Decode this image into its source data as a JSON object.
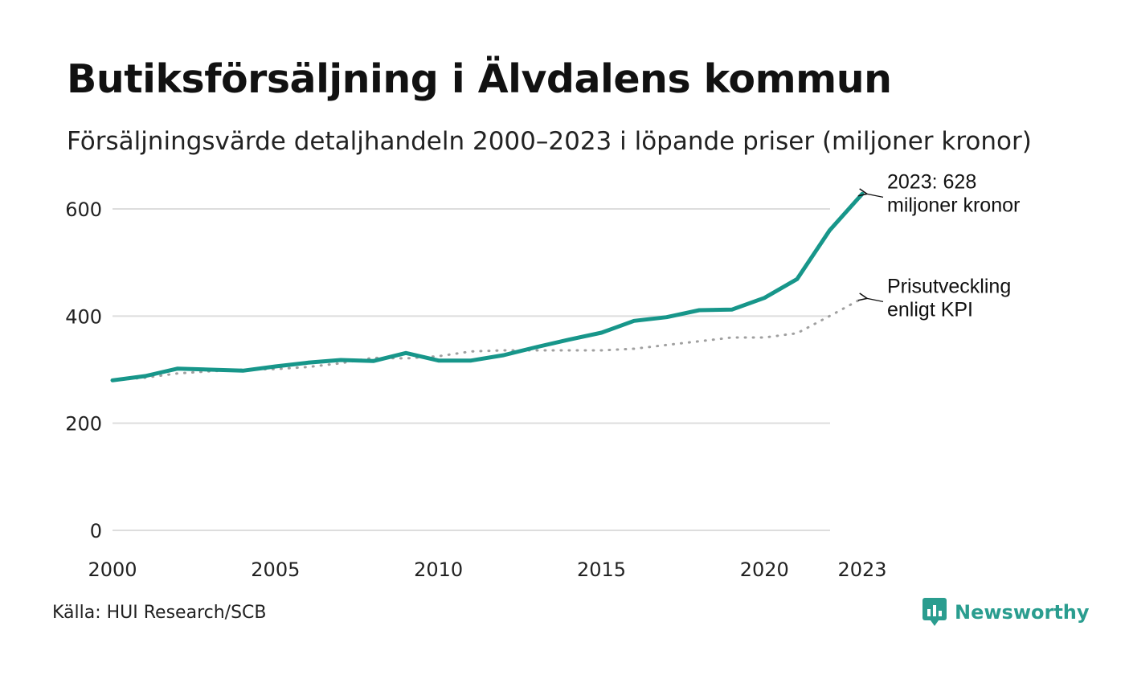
{
  "title": "Butiksförsäljning i Älvdalens kommun",
  "subtitle": "Försäljningsvärde detaljhandeln 2000–2023 i löpande priser (miljoner kronor)",
  "source": "Källa: HUI Research/SCB",
  "brand": "Newsworthy",
  "colors": {
    "sales": "#17968a",
    "kpi": "#a0a0a0",
    "grid": "#dddddd",
    "brand": "#2a9d8f"
  },
  "chart_data": {
    "type": "line",
    "x": [
      2000,
      2001,
      2002,
      2003,
      2004,
      2005,
      2006,
      2007,
      2008,
      2009,
      2010,
      2011,
      2012,
      2013,
      2014,
      2015,
      2016,
      2017,
      2018,
      2019,
      2020,
      2021,
      2022,
      2023
    ],
    "series": [
      {
        "name": "Försäljningsvärde",
        "style": "solid",
        "values": [
          280,
          288,
          302,
          300,
          298,
          306,
          313,
          318,
          316,
          331,
          317,
          317,
          327,
          342,
          356,
          369,
          391,
          398,
          411,
          412,
          434,
          469,
          560,
          628
        ]
      },
      {
        "name": "Prisutveckling enligt KPI",
        "style": "dotted",
        "values": [
          280,
          285,
          293,
          297,
          300,
          301,
          305,
          312,
          322,
          321,
          325,
          334,
          336,
          336,
          336,
          336,
          339,
          346,
          353,
          360,
          360,
          368,
          400,
          433
        ]
      }
    ],
    "xticks": [
      2000,
      2005,
      2010,
      2015,
      2020,
      2023
    ],
    "yticks": [
      0,
      200,
      400,
      600
    ],
    "ylim": [
      0,
      600
    ],
    "annotations": [
      {
        "series": 0,
        "lines": [
          "2023: 628",
          "miljoner kronor"
        ]
      },
      {
        "series": 1,
        "lines": [
          "Prisutveckling",
          "enligt KPI"
        ]
      }
    ]
  }
}
